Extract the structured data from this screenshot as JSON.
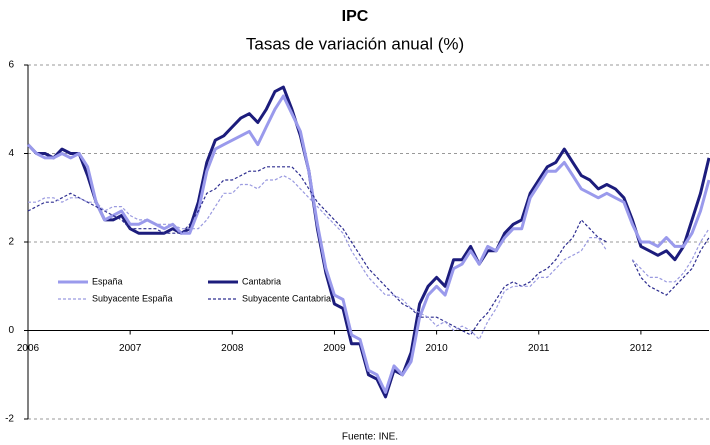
{
  "chart_data": {
    "type": "line",
    "title": "IPC",
    "subtitle": "Tasas de variación anual (%)",
    "source": "Fuente: INE.",
    "categories": [
      "2006",
      null,
      null,
      null,
      null,
      null,
      null,
      null,
      null,
      null,
      null,
      null,
      "2007",
      null,
      null,
      null,
      null,
      null,
      null,
      null,
      null,
      null,
      null,
      null,
      "2008",
      null,
      null,
      null,
      null,
      null,
      null,
      null,
      null,
      null,
      null,
      null,
      "2009",
      null,
      null,
      null,
      null,
      null,
      null,
      null,
      null,
      null,
      null,
      null,
      "2010",
      null,
      null,
      null,
      null,
      null,
      null,
      null,
      null,
      null,
      null,
      null,
      "2011",
      null,
      null,
      null,
      null,
      null,
      null,
      null,
      null,
      null,
      null,
      null,
      "2012",
      null,
      null,
      null,
      null,
      null,
      null,
      null,
      null
    ],
    "ylim": [
      -2,
      6
    ],
    "yticks": [
      6,
      4,
      2,
      0,
      -2
    ],
    "grid": true,
    "series": [
      {
        "name": "España",
        "color": "#9a9aec",
        "dash": false,
        "values": [
          4.2,
          4.0,
          3.9,
          3.9,
          4.0,
          3.9,
          4.0,
          3.7,
          2.9,
          2.5,
          2.6,
          2.7,
          2.4,
          2.4,
          2.5,
          2.4,
          2.3,
          2.4,
          2.2,
          2.2,
          2.7,
          3.6,
          4.1,
          4.2,
          4.3,
          4.4,
          4.5,
          4.2,
          4.6,
          5.0,
          5.3,
          4.9,
          4.5,
          3.6,
          2.4,
          1.4,
          0.8,
          0.7,
          -0.1,
          -0.2,
          -0.9,
          -1.0,
          -1.4,
          -0.8,
          -1.0,
          -0.7,
          0.3,
          0.8,
          1.0,
          0.8,
          1.4,
          1.5,
          1.8,
          1.5,
          1.9,
          1.8,
          2.1,
          2.3,
          2.3,
          3.0,
          3.3,
          3.6,
          3.6,
          3.8,
          3.5,
          3.2,
          3.1,
          3.0,
          3.1,
          3.0,
          2.9,
          2.4,
          2.0,
          2.0,
          1.9,
          2.1,
          1.9,
          1.9,
          2.2,
          2.7,
          3.4
        ]
      },
      {
        "name": "Cantabria",
        "color": "#1c1c7c",
        "dash": false,
        "values": [
          4.2,
          4.0,
          4.0,
          3.9,
          4.1,
          4.0,
          4.0,
          3.5,
          2.9,
          2.5,
          2.5,
          2.6,
          2.3,
          2.2,
          2.2,
          2.2,
          2.2,
          2.3,
          2.2,
          2.3,
          2.9,
          3.8,
          4.3,
          4.4,
          4.6,
          4.8,
          4.9,
          4.7,
          5.0,
          5.4,
          5.5,
          5.0,
          4.4,
          3.6,
          2.3,
          1.3,
          0.6,
          0.5,
          -0.3,
          -0.3,
          -1.0,
          -1.1,
          -1.5,
          -0.9,
          -1.0,
          -0.5,
          0.6,
          1.0,
          1.2,
          1.0,
          1.6,
          1.6,
          1.9,
          1.5,
          1.8,
          1.8,
          2.2,
          2.4,
          2.5,
          3.1,
          3.4,
          3.7,
          3.8,
          4.1,
          3.8,
          3.5,
          3.4,
          3.2,
          3.3,
          3.2,
          3.0,
          2.5,
          1.9,
          1.8,
          1.7,
          1.8,
          1.6,
          1.9,
          2.5,
          3.1,
          3.9
        ]
      },
      {
        "name": "Subyacente España",
        "color": "#9a9ae0",
        "dash": true,
        "values": [
          2.9,
          2.9,
          3.0,
          3.0,
          2.9,
          3.0,
          3.0,
          2.9,
          2.9,
          2.7,
          2.8,
          2.8,
          2.6,
          2.5,
          2.5,
          2.4,
          2.4,
          2.4,
          2.3,
          2.3,
          2.3,
          2.5,
          2.8,
          3.1,
          3.1,
          3.3,
          3.3,
          3.2,
          3.4,
          3.4,
          3.5,
          3.4,
          3.2,
          3.0,
          2.8,
          2.6,
          2.4,
          2.2,
          1.8,
          1.5,
          1.2,
          1.0,
          0.8,
          0.8,
          0.7,
          0.5,
          0.4,
          0.3,
          0.1,
          0.2,
          0.0,
          0.1,
          0.0,
          -0.2,
          0.2,
          0.5,
          0.9,
          1.0,
          1.0,
          1.0,
          1.2,
          1.2,
          1.4,
          1.6,
          1.7,
          1.8,
          2.1,
          2.1,
          1.8,
          null,
          null,
          1.6,
          1.4,
          1.2,
          1.2,
          1.1,
          1.1,
          1.3,
          1.6,
          2.0,
          2.3
        ]
      },
      {
        "name": "Subyacente Cantabria",
        "color": "#2e2e90",
        "dash": true,
        "values": [
          2.7,
          2.8,
          2.9,
          2.9,
          3.0,
          3.1,
          3.0,
          2.9,
          2.8,
          2.7,
          2.6,
          2.5,
          2.3,
          2.3,
          2.3,
          2.3,
          2.2,
          2.2,
          2.2,
          2.4,
          2.7,
          3.1,
          3.2,
          3.4,
          3.4,
          3.5,
          3.6,
          3.6,
          3.7,
          3.7,
          3.7,
          3.7,
          3.5,
          3.2,
          2.9,
          2.7,
          2.5,
          2.3,
          2.0,
          1.7,
          1.4,
          1.2,
          1.0,
          0.8,
          0.6,
          0.5,
          0.3,
          0.3,
          0.3,
          0.2,
          0.1,
          0.0,
          -0.1,
          0.2,
          0.4,
          0.7,
          1.0,
          1.1,
          1.0,
          1.1,
          1.3,
          1.4,
          1.6,
          1.9,
          2.1,
          2.5,
          2.3,
          2.1,
          2.0,
          null,
          null,
          1.6,
          1.2,
          1.0,
          0.9,
          0.8,
          1.0,
          1.2,
          1.4,
          1.8,
          2.1
        ]
      }
    ]
  }
}
